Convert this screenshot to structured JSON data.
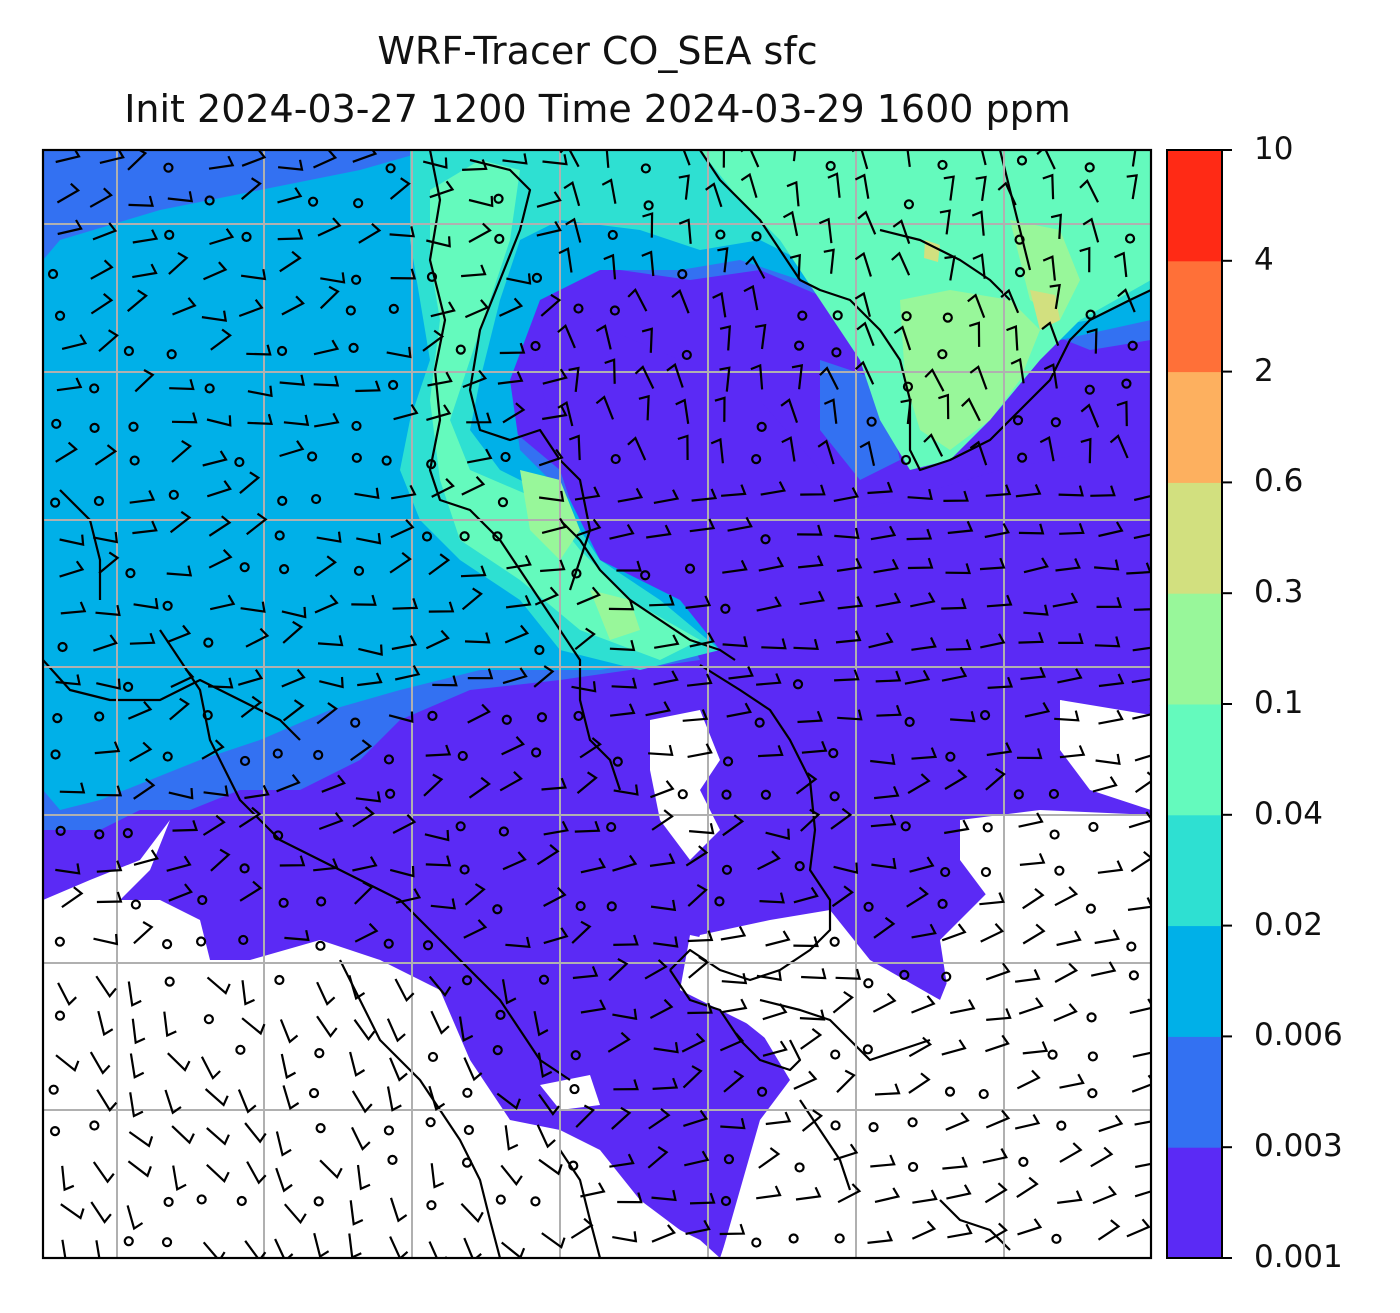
{
  "title": {
    "line1": "WRF-Tracer CO_SEA sfc",
    "line2": "Init 2024-03-27 1200 Time 2024-03-29 1600 ppm"
  },
  "colorbar": {
    "levels": [
      "0.001",
      "0.003",
      "0.006",
      "0.02",
      "0.04",
      "0.1",
      "0.3",
      "0.6",
      "2",
      "4",
      "10"
    ],
    "colors": [
      "#5b2af5",
      "#3371f2",
      "#00b0e8",
      "#2ee0d2",
      "#64fabd",
      "#98f79a",
      "#d2e07f",
      "#fdb05f",
      "#ff7038",
      "#ff2a15"
    ]
  },
  "map": {
    "field": "CO_SEA tracer concentration with surface wind barbs",
    "background": "#ffffff"
  }
}
